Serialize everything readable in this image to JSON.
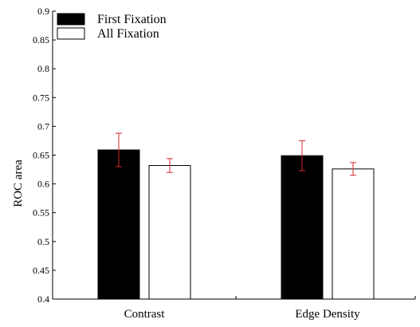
{
  "chart_data": {
    "type": "bar",
    "categories": [
      "Contrast",
      "Edge Density"
    ],
    "series": [
      {
        "name": "First Fixation",
        "values": [
          0.659,
          0.649
        ],
        "error": [
          0.029,
          0.026
        ],
        "color": "#000000"
      },
      {
        "name": "All Fixation",
        "values": [
          0.632,
          0.626
        ],
        "error": [
          0.012,
          0.011
        ],
        "color": "#ffffff"
      }
    ],
    "title": "",
    "xlabel": "",
    "ylabel": "ROC area",
    "ylim": [
      0.4,
      0.9
    ],
    "yticks": [
      "0.4",
      "0.45",
      "0.5",
      "0.55",
      "0.6",
      "0.65",
      "0.7",
      "0.75",
      "0.8",
      "0.85",
      "0.9"
    ],
    "error_bar_color": "#d62728",
    "legend_position": "top-left",
    "grid": false
  }
}
